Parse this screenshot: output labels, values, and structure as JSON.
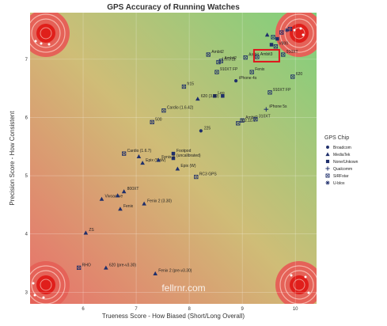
{
  "chart_data": {
    "type": "scatter",
    "title": "GPS Accuracy of Running Watches",
    "xlabel": "Trueness Score - How Biased (Short/Long Overall)",
    "ylabel": "Precision Score - How Consistent",
    "xlim": [
      5.0,
      10.4
    ],
    "ylim": [
      2.8,
      7.8
    ],
    "x_ticks": [
      "6",
      "7",
      "8",
      "9",
      "10"
    ],
    "y_ticks": [
      "3",
      "4",
      "5",
      "6",
      "7"
    ],
    "watermark": "fellrnr.com",
    "legend": {
      "title": "GPS Chip",
      "placement": "right",
      "entries": [
        {
          "name": "Broadcom",
          "marker": "circle"
        },
        {
          "name": "MediaTek",
          "marker": "triangle"
        },
        {
          "name": "None/Unkown",
          "marker": "square"
        },
        {
          "name": "Qualcomm",
          "marker": "plus"
        },
        {
          "name": "SiRFstar",
          "marker": "boxx"
        },
        {
          "name": "U-blox",
          "marker": "asterisk"
        }
      ]
    },
    "highlight": {
      "label": "Ambit3",
      "color": "#e0141c"
    },
    "targets": [
      "top-left",
      "top-right",
      "bottom-left",
      "bottom-right"
    ],
    "points": [
      {
        "label": "Ambit",
        "x": 9.06,
        "y": 7.03,
        "marker": "boxx"
      },
      {
        "label": "Ambit3",
        "x": 9.28,
        "y": 7.04,
        "marker": "boxx"
      },
      {
        "label": "Ambit2",
        "x": 8.6,
        "y": 6.97,
        "marker": "boxx"
      },
      {
        "label": "910XT",
        "x": 9.77,
        "y": 7.08,
        "marker": "boxx"
      },
      {
        "label": "V800",
        "x": 9.63,
        "y": 7.22,
        "marker": "boxx"
      },
      {
        "label": "",
        "x": 9.47,
        "y": 7.42,
        "marker": "triangle"
      },
      {
        "label": "",
        "x": 9.58,
        "y": 7.38,
        "marker": "boxx"
      },
      {
        "label": "",
        "x": 9.66,
        "y": 7.35,
        "marker": "square"
      },
      {
        "label": "",
        "x": 9.74,
        "y": 7.46,
        "marker": "boxx"
      },
      {
        "label": "",
        "x": 9.84,
        "y": 7.5,
        "marker": "asterisk"
      },
      {
        "label": "",
        "x": 9.9,
        "y": 7.52,
        "marker": "boxx"
      },
      {
        "label": "",
        "x": 9.55,
        "y": 7.25,
        "marker": "square"
      },
      {
        "label": "Ambit2",
        "x": 8.36,
        "y": 7.08,
        "marker": "boxx"
      },
      {
        "label": "1.6.0.11",
        "x": 8.55,
        "y": 6.95,
        "marker": "boxx"
      },
      {
        "label": "910XT FP",
        "x": 8.52,
        "y": 6.78,
        "marker": "boxx"
      },
      {
        "label": "Fenix",
        "x": 9.18,
        "y": 6.78,
        "marker": "boxx"
      },
      {
        "label": "iPhone 4s",
        "x": 8.88,
        "y": 6.63,
        "marker": "circle"
      },
      {
        "label": "fr15",
        "x": 7.9,
        "y": 6.53,
        "marker": "boxx"
      },
      {
        "label": "Leo",
        "x": 8.48,
        "y": 6.37,
        "marker": "square"
      },
      {
        "label": "",
        "x": 8.63,
        "y": 6.37,
        "marker": "square"
      },
      {
        "label": "910XT FP",
        "x": 9.52,
        "y": 6.43,
        "marker": "boxx"
      },
      {
        "label": "620",
        "x": 9.95,
        "y": 6.7,
        "marker": "boxx"
      },
      {
        "label": "620 (3.30)",
        "x": 8.16,
        "y": 6.32,
        "marker": "triangle"
      },
      {
        "label": "iPhone 5s",
        "x": 9.45,
        "y": 6.14,
        "marker": "plus"
      },
      {
        "label": "Cardio (1.6.42)",
        "x": 7.52,
        "y": 6.12,
        "marker": "boxx"
      },
      {
        "label": "500",
        "x": 7.3,
        "y": 5.92,
        "marker": "boxx"
      },
      {
        "label": "Ambit2",
        "x": 9.0,
        "y": 5.95,
        "marker": "boxx"
      },
      {
        "label": "1.2.10.7",
        "x": 8.92,
        "y": 5.9,
        "marker": "boxx"
      },
      {
        "label": "310XT",
        "x": 9.25,
        "y": 5.97,
        "marker": "boxx"
      },
      {
        "label": "225",
        "x": 8.22,
        "y": 5.77,
        "marker": "circle"
      },
      {
        "label": "Cardio (1.6.7)",
        "x": 6.77,
        "y": 5.38,
        "marker": "boxx"
      },
      {
        "label": "",
        "x": 7.05,
        "y": 5.33,
        "marker": "triangle"
      },
      {
        "label": "Footpod",
        "x": 7.7,
        "y": 5.38,
        "marker": "square"
      },
      {
        "label": "(uncalibrated)",
        "x": 7.7,
        "y": 5.3,
        "marker": "square"
      },
      {
        "label": "Epix (SoW)",
        "x": 7.12,
        "y": 5.22,
        "marker": "triangle"
      },
      {
        "label": "Fenix 3",
        "x": 7.42,
        "y": 5.27,
        "marker": "triangle"
      },
      {
        "label": "Epix (W)",
        "x": 7.78,
        "y": 5.12,
        "marker": "triangle"
      },
      {
        "label": "RC3 GPS",
        "x": 8.13,
        "y": 4.98,
        "marker": "boxx"
      },
      {
        "label": "800XT",
        "x": 6.77,
        "y": 4.73,
        "marker": "triangle"
      },
      {
        "label": "Vivoactive",
        "x": 6.35,
        "y": 4.6,
        "marker": "triangle"
      },
      {
        "label": "",
        "x": 6.65,
        "y": 4.66,
        "marker": "triangle"
      },
      {
        "label": "Fenix 2 (3.30)",
        "x": 7.15,
        "y": 4.52,
        "marker": "triangle"
      },
      {
        "label": "Fenix",
        "x": 6.7,
        "y": 4.43,
        "marker": "triangle"
      },
      {
        "label": "ZS",
        "x": 6.05,
        "y": 4.02,
        "marker": "triangle"
      },
      {
        "label": "RHO",
        "x": 5.92,
        "y": 3.42,
        "marker": "boxx"
      },
      {
        "label": "620 (pre-v3.30)",
        "x": 6.43,
        "y": 3.42,
        "marker": "triangle"
      },
      {
        "label": "Fenix 2 (pre-v3.30)",
        "x": 7.36,
        "y": 3.32,
        "marker": "triangle"
      }
    ]
  }
}
